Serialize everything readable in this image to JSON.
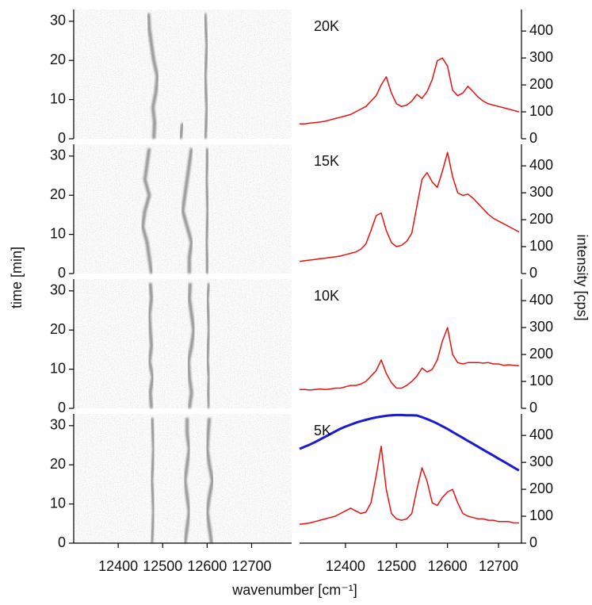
{
  "figure": {
    "xlabel": "wavenumber [cm⁻¹]",
    "ylabel": "time [min]",
    "y2label": "intensity [cps]"
  },
  "chart_data": [
    {
      "type": "image",
      "xlim": [
        12300,
        12790
      ],
      "ylim": [
        0,
        33
      ],
      "yticks": [
        0,
        10,
        20,
        30
      ],
      "y": [
        0,
        4,
        8,
        12,
        16,
        20,
        24,
        28,
        32
      ],
      "series": [
        {
          "color": "#3a3a3a",
          "x": [
            12480,
            12482,
            12478,
            12485,
            12488,
            12480,
            12475,
            12470,
            12468
          ]
        },
        {
          "color": "#3a3a3a",
          "x": [
            12595,
            12598,
            12600,
            12597,
            12595,
            12598,
            12600,
            12597,
            12595
          ]
        },
        {
          "color": "#3a3a3a",
          "x": [
            12540,
            12545,
            null,
            null,
            null,
            null,
            null,
            null,
            null
          ]
        }
      ]
    },
    {
      "type": "line",
      "label": "20K",
      "xlim": [
        12310,
        12745
      ],
      "ylim": [
        0,
        480
      ],
      "yticks": [
        0,
        100,
        200,
        300,
        400
      ],
      "x": [
        12310,
        12320,
        12330,
        12340,
        12350,
        12360,
        12370,
        12380,
        12390,
        12400,
        12410,
        12420,
        12430,
        12440,
        12450,
        12460,
        12470,
        12480,
        12490,
        12500,
        12510,
        12520,
        12530,
        12540,
        12550,
        12560,
        12570,
        12580,
        12590,
        12600,
        12610,
        12620,
        12630,
        12640,
        12650,
        12660,
        12670,
        12680,
        12690,
        12700,
        12710,
        12720,
        12730,
        12740
      ],
      "series": [
        {
          "color": "#e81010",
          "values": [
            55,
            55,
            58,
            60,
            62,
            65,
            70,
            75,
            80,
            85,
            90,
            100,
            110,
            120,
            140,
            160,
            200,
            230,
            170,
            130,
            120,
            125,
            140,
            165,
            150,
            175,
            220,
            290,
            300,
            270,
            180,
            160,
            170,
            195,
            175,
            155,
            140,
            130,
            125,
            120,
            115,
            110,
            105,
            100
          ]
        }
      ]
    },
    {
      "type": "image",
      "xlim": [
        12300,
        12790
      ],
      "ylim": [
        0,
        33
      ],
      "yticks": [
        0,
        10,
        20,
        30
      ],
      "y": [
        0,
        4,
        8,
        12,
        16,
        20,
        24,
        28,
        32
      ],
      "series": [
        {
          "color": "#3a3a3a",
          "x": [
            12475,
            12470,
            12465,
            12455,
            12460,
            12470,
            12460,
            12465,
            12470
          ]
        },
        {
          "color": "#3a3a3a",
          "x": [
            12560,
            12560,
            12565,
            12555,
            12545,
            12550,
            12555,
            12560,
            12565
          ]
        },
        {
          "color": "#3a3a3a",
          "x": [
            12600,
            12600,
            12598,
            12600,
            12602,
            12600,
            12598,
            12600,
            12600
          ]
        }
      ]
    },
    {
      "type": "line",
      "label": "15K",
      "xlim": [
        12310,
        12745
      ],
      "ylim": [
        0,
        480
      ],
      "yticks": [
        0,
        100,
        200,
        300,
        400
      ],
      "x": [
        12310,
        12320,
        12330,
        12340,
        12350,
        12360,
        12370,
        12380,
        12390,
        12400,
        12410,
        12420,
        12430,
        12440,
        12450,
        12460,
        12470,
        12480,
        12490,
        12500,
        12510,
        12520,
        12530,
        12540,
        12550,
        12560,
        12570,
        12580,
        12590,
        12600,
        12610,
        12620,
        12630,
        12640,
        12650,
        12660,
        12670,
        12680,
        12690,
        12700,
        12710,
        12720,
        12730,
        12740
      ],
      "series": [
        {
          "color": "#e81010",
          "values": [
            45,
            48,
            50,
            52,
            55,
            57,
            60,
            62,
            65,
            70,
            75,
            80,
            90,
            110,
            160,
            215,
            225,
            160,
            115,
            100,
            105,
            120,
            150,
            250,
            350,
            375,
            340,
            320,
            380,
            450,
            360,
            300,
            290,
            295,
            280,
            260,
            240,
            220,
            205,
            195,
            185,
            175,
            165,
            155
          ]
        }
      ]
    },
    {
      "type": "image",
      "xlim": [
        12300,
        12790
      ],
      "ylim": [
        0,
        33
      ],
      "yticks": [
        0,
        10,
        20,
        30
      ],
      "y": [
        0,
        4,
        8,
        12,
        16,
        20,
        24,
        28,
        32
      ],
      "series": [
        {
          "color": "#3a3a3a",
          "x": [
            12475,
            12472,
            12478,
            12470,
            12475,
            12472,
            12470,
            12475,
            12472
          ]
        },
        {
          "color": "#3a3a3a",
          "x": [
            12560,
            12565,
            12560,
            12558,
            12565,
            12570,
            12565,
            12560,
            12562
          ]
        },
        {
          "color": "#3a3a3a",
          "x": [
            12605,
            12603,
            12605,
            12600,
            12602,
            12605,
            12603,
            12600,
            12605
          ]
        }
      ]
    },
    {
      "type": "line",
      "label": "10K",
      "xlim": [
        12310,
        12745
      ],
      "ylim": [
        0,
        480
      ],
      "yticks": [
        0,
        100,
        200,
        300,
        400
      ],
      "x": [
        12310,
        12320,
        12330,
        12340,
        12350,
        12360,
        12370,
        12380,
        12390,
        12400,
        12410,
        12420,
        12430,
        12440,
        12450,
        12460,
        12470,
        12480,
        12490,
        12500,
        12510,
        12520,
        12530,
        12540,
        12550,
        12560,
        12570,
        12580,
        12590,
        12600,
        12610,
        12620,
        12630,
        12640,
        12650,
        12660,
        12670,
        12680,
        12690,
        12700,
        12710,
        12720,
        12730,
        12740
      ],
      "series": [
        {
          "color": "#e81010",
          "values": [
            70,
            70,
            68,
            70,
            72,
            70,
            72,
            75,
            75,
            80,
            85,
            85,
            90,
            100,
            120,
            140,
            180,
            130,
            95,
            75,
            75,
            85,
            100,
            120,
            150,
            135,
            145,
            180,
            250,
            300,
            200,
            170,
            165,
            170,
            170,
            170,
            168,
            170,
            165,
            165,
            160,
            162,
            160,
            158
          ]
        }
      ]
    },
    {
      "type": "image",
      "xlim": [
        12300,
        12790
      ],
      "ylim": [
        0,
        33
      ],
      "yticks": [
        0,
        10,
        20,
        30
      ],
      "xticks": [
        12400,
        12500,
        12600,
        12700
      ],
      "y": [
        0,
        4,
        8,
        12,
        16,
        20,
        24,
        28,
        32
      ],
      "series": [
        {
          "color": "#3a3a3a",
          "x": [
            12475,
            12478,
            12480,
            12478,
            12475,
            12478,
            12480,
            12478,
            12476
          ]
        },
        {
          "color": "#3a3a3a",
          "x": [
            12550,
            12555,
            12560,
            12555,
            12550,
            12555,
            12560,
            12555,
            12555
          ]
        },
        {
          "color": "#3a3a3a",
          "x": [
            12610,
            12605,
            12600,
            12605,
            12612,
            12605,
            12600,
            12602,
            12605
          ]
        }
      ]
    },
    {
      "type": "line",
      "label": "5K",
      "xlim": [
        12310,
        12745
      ],
      "ylim": [
        0,
        480
      ],
      "yticks": [
        0,
        100,
        200,
        300,
        400
      ],
      "xticks": [
        12400,
        12500,
        12600,
        12700
      ],
      "x": [
        12310,
        12320,
        12330,
        12340,
        12350,
        12360,
        12370,
        12380,
        12390,
        12400,
        12410,
        12420,
        12430,
        12440,
        12450,
        12460,
        12470,
        12480,
        12490,
        12500,
        12510,
        12520,
        12530,
        12540,
        12550,
        12560,
        12570,
        12580,
        12590,
        12600,
        12610,
        12620,
        12630,
        12640,
        12650,
        12660,
        12670,
        12680,
        12690,
        12700,
        12710,
        12720,
        12730,
        12740
      ],
      "series": [
        {
          "color": "#1a1ad0",
          "values": [
            350,
            358,
            366,
            375,
            385,
            395,
            405,
            415,
            425,
            433,
            440,
            447,
            453,
            458,
            463,
            467,
            470,
            473,
            475,
            476,
            476,
            475,
            475,
            474,
            468,
            461,
            453,
            444,
            434,
            424,
            413,
            402,
            391,
            380,
            369,
            358,
            347,
            336,
            325,
            314,
            303,
            292,
            281,
            270
          ]
        },
        {
          "color": "#e81010",
          "values": [
            70,
            72,
            75,
            80,
            85,
            90,
            95,
            100,
            110,
            120,
            130,
            120,
            110,
            115,
            150,
            250,
            360,
            200,
            110,
            90,
            85,
            90,
            110,
            200,
            280,
            230,
            150,
            140,
            170,
            190,
            200,
            150,
            110,
            100,
            95,
            90,
            90,
            85,
            85,
            80,
            80,
            80,
            75,
            75
          ]
        }
      ]
    }
  ]
}
